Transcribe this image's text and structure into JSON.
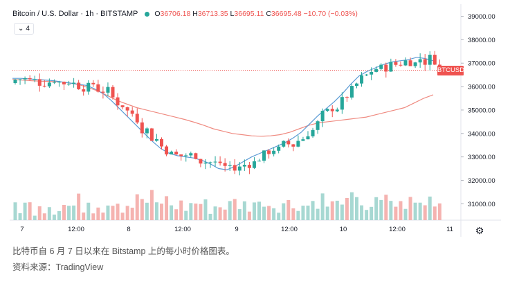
{
  "header": {
    "symbol": "Bitcoin / U.S. Dollar · 1h · BITSTAMP",
    "o_label": "O",
    "o": "36706.18",
    "h_label": "H",
    "h": "36713.35",
    "l_label": "L",
    "l": "36695.11",
    "c_label": "C",
    "c": "36695.48",
    "change": "−10.70 (−0.03%)",
    "indicator_count": "4"
  },
  "price_tag": "BTCUSD",
  "caption": {
    "line1": "比特币自 6 月 7 日以来在 Bitstamp 上的每小时价格图表。",
    "line2": "资料来源：TradingView"
  },
  "colors": {
    "up": "#26a69a",
    "down": "#ef5350",
    "ma_fast": "#5b9bd5",
    "ma_slow": "#ef8a80",
    "vol_up": "#a7d8d2",
    "vol_down": "#f5b3b0"
  },
  "chart_data": {
    "type": "candlestick",
    "symbol": "BTCUSD",
    "x_ticks": [
      "7",
      "12:00",
      "8",
      "12:00",
      "9",
      "12:00",
      "10",
      "12:00",
      "11"
    ],
    "y_ticks": [
      "31000.00",
      "32000.00",
      "33000.00",
      "34000.00",
      "35000.00",
      "36000.00",
      "37000.00",
      "38000.00",
      "39000.00"
    ],
    "ylim": [
      30300,
      39400
    ],
    "last_price": 36695.48,
    "ma_fast": [
      36350,
      36350,
      36330,
      36300,
      36280,
      36250,
      36200,
      36150,
      36100,
      36050,
      35900,
      35700,
      35400,
      35050,
      34700,
      34350,
      34000,
      33650,
      33350,
      33150,
      33050,
      33000,
      32950,
      32850,
      32700,
      32500,
      32450,
      32600,
      32800,
      33000,
      33150,
      33300,
      33450,
      33600,
      33800,
      34050,
      34400,
      34750,
      35050,
      35350,
      35700,
      36100,
      36450,
      36650,
      36800,
      36950,
      37050,
      37100,
      37150,
      37250,
      37200,
      37100
    ],
    "ma_slow": [
      36300,
      36280,
      36250,
      36230,
      36220,
      36200,
      36150,
      36080,
      35950,
      35800,
      35600,
      35400,
      35250,
      35100,
      35000,
      34900,
      34800,
      34700,
      34600,
      34480,
      34350,
      34200,
      34100,
      34000,
      33950,
      33900,
      33880,
      33900,
      33950,
      34050,
      34200,
      34350,
      34450,
      34500,
      34550,
      34600,
      34650,
      34700,
      34800,
      34900,
      35000,
      35100,
      35300,
      35500,
      35650
    ]
  }
}
